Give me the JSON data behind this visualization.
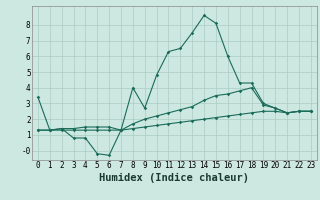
{
  "title": "",
  "xlabel": "Humidex (Indice chaleur)",
  "background_color": "#cce8e0",
  "grid_color": "#aaccC4",
  "line_color": "#1a6b5a",
  "x": [
    0,
    1,
    2,
    3,
    4,
    5,
    6,
    7,
    8,
    9,
    10,
    11,
    12,
    13,
    14,
    15,
    16,
    17,
    18,
    19,
    20,
    21,
    22,
    23
  ],
  "y_max": [
    3.4,
    1.3,
    1.4,
    0.8,
    0.8,
    -0.2,
    -0.3,
    1.3,
    4.0,
    2.7,
    4.8,
    6.3,
    6.5,
    7.5,
    8.6,
    8.1,
    6.0,
    4.3,
    4.3,
    3.0,
    2.7,
    2.4,
    2.5,
    2.5
  ],
  "y_mean": [
    1.3,
    1.3,
    1.4,
    1.4,
    1.5,
    1.5,
    1.5,
    1.3,
    1.7,
    2.0,
    2.2,
    2.4,
    2.6,
    2.8,
    3.2,
    3.5,
    3.6,
    3.8,
    4.0,
    2.9,
    2.7,
    2.4,
    2.5,
    2.5
  ],
  "y_min": [
    1.3,
    1.3,
    1.3,
    1.3,
    1.3,
    1.3,
    1.3,
    1.3,
    1.4,
    1.5,
    1.6,
    1.7,
    1.8,
    1.9,
    2.0,
    2.1,
    2.2,
    2.3,
    2.4,
    2.5,
    2.5,
    2.4,
    2.5,
    2.5
  ],
  "ylim": [
    -0.6,
    9.2
  ],
  "xlim": [
    -0.5,
    23.5
  ],
  "yticks": [
    0,
    1,
    2,
    3,
    4,
    5,
    6,
    7,
    8
  ],
  "ytick_labels": [
    "-0",
    "1",
    "2",
    "3",
    "4",
    "5",
    "6",
    "7",
    "8"
  ],
  "xticks": [
    0,
    1,
    2,
    3,
    4,
    5,
    6,
    7,
    8,
    9,
    10,
    11,
    12,
    13,
    14,
    15,
    16,
    17,
    18,
    19,
    20,
    21,
    22,
    23
  ],
  "tick_fontsize": 5.5,
  "xlabel_fontsize": 7.5
}
